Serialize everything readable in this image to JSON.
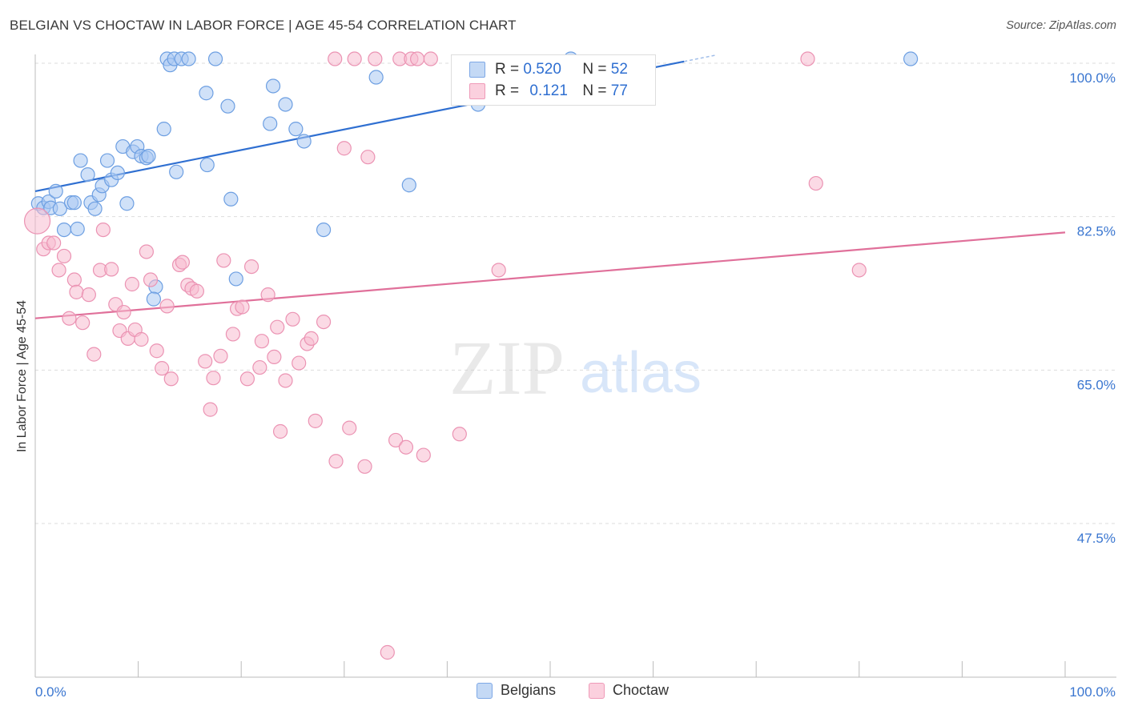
{
  "title": "BELGIAN VS CHOCTAW IN LABOR FORCE | AGE 45-54 CORRELATION CHART",
  "source": "Source: ZipAtlas.com",
  "watermark": {
    "zip": "ZIP",
    "atlas": "atlas"
  },
  "colors": {
    "blue": "#2f6fd1",
    "blue_fill": "#a9c8f2",
    "pink": "#e0709a",
    "pink_fill": "#f7bcd0",
    "grid": "#dddddd",
    "axis_text": "#3a76d0"
  },
  "legend_stats": [
    {
      "r_label": "R =",
      "r_value": "0.520",
      "n_label": "N =",
      "n_value": "52"
    },
    {
      "r_label": "R =",
      "r_value": "0.121",
      "n_label": "N =",
      "n_value": "77"
    }
  ],
  "bottom_legend": [
    "Belgians",
    "Choctaw"
  ],
  "chart_data": {
    "type": "scatter",
    "title": "BELGIAN VS CHOCTAW IN LABOR FORCE | AGE 45-54 CORRELATION CHART",
    "xlabel": "",
    "ylabel": "In Labor Force | Age 45-54",
    "xlim": [
      0,
      100
    ],
    "ylim": [
      30,
      102
    ],
    "x_tick_labels": [
      "0.0%",
      "100.0%"
    ],
    "y_tick_labels": [
      "100.0%",
      "82.5%",
      "65.0%",
      "47.5%"
    ],
    "y_ticks": [
      100,
      82.5,
      65,
      47.5
    ],
    "series": [
      {
        "name": "Belgians",
        "color": "#2f6fd1",
        "trend": {
          "x": [
            0,
            63
          ],
          "y": [
            85.4,
            100.2
          ]
        },
        "points": [
          [
            0.3,
            84.0
          ],
          [
            0.8,
            83.5
          ],
          [
            1.3,
            84.2
          ],
          [
            1.5,
            83.5
          ],
          [
            2.0,
            85.4
          ],
          [
            2.4,
            83.4
          ],
          [
            2.8,
            81.0
          ],
          [
            3.5,
            84.1
          ],
          [
            3.8,
            84.1
          ],
          [
            4.1,
            81.1
          ],
          [
            4.4,
            88.9
          ],
          [
            5.1,
            87.3
          ],
          [
            5.4,
            84.1
          ],
          [
            5.8,
            83.4
          ],
          [
            6.2,
            85.0
          ],
          [
            6.5,
            86.0
          ],
          [
            7.0,
            88.9
          ],
          [
            7.4,
            86.7
          ],
          [
            8.0,
            87.5
          ],
          [
            8.5,
            90.5
          ],
          [
            8.9,
            84.0
          ],
          [
            9.5,
            89.9
          ],
          [
            9.9,
            90.5
          ],
          [
            10.3,
            89.4
          ],
          [
            10.8,
            89.2
          ],
          [
            11.0,
            89.4
          ],
          [
            11.7,
            74.5
          ],
          [
            11.5,
            73.1
          ],
          [
            12.5,
            92.5
          ],
          [
            12.8,
            100.5
          ],
          [
            13.1,
            99.8
          ],
          [
            13.5,
            100.5
          ],
          [
            13.7,
            87.6
          ],
          [
            14.2,
            100.5
          ],
          [
            14.9,
            100.5
          ],
          [
            16.6,
            96.6
          ],
          [
            16.7,
            88.4
          ],
          [
            17.5,
            100.5
          ],
          [
            18.7,
            95.1
          ],
          [
            19.0,
            84.5
          ],
          [
            19.5,
            75.4
          ],
          [
            22.8,
            93.1
          ],
          [
            23.1,
            97.4
          ],
          [
            24.3,
            95.3
          ],
          [
            25.3,
            92.5
          ],
          [
            26.1,
            91.1
          ],
          [
            28.0,
            81.0
          ],
          [
            33.1,
            98.4
          ],
          [
            36.3,
            86.1
          ],
          [
            43.0,
            95.3
          ],
          [
            52.0,
            100.5
          ],
          [
            85.0,
            100.5
          ]
        ]
      },
      {
        "name": "Choctaw",
        "color": "#e0709a",
        "trend": {
          "x": [
            0,
            100
          ],
          "y": [
            70.9,
            80.7
          ]
        },
        "points": [
          [
            0.2,
            82.0
          ],
          [
            0.8,
            78.8
          ],
          [
            1.3,
            79.5
          ],
          [
            1.8,
            79.5
          ],
          [
            2.3,
            76.4
          ],
          [
            2.8,
            78.0
          ],
          [
            3.3,
            70.9
          ],
          [
            3.8,
            75.3
          ],
          [
            4.0,
            73.9
          ],
          [
            4.6,
            70.4
          ],
          [
            5.2,
            73.6
          ],
          [
            5.7,
            66.8
          ],
          [
            6.3,
            76.4
          ],
          [
            6.6,
            81.0
          ],
          [
            7.4,
            76.5
          ],
          [
            7.8,
            72.5
          ],
          [
            8.2,
            69.5
          ],
          [
            8.6,
            71.6
          ],
          [
            9.0,
            68.6
          ],
          [
            9.4,
            74.8
          ],
          [
            9.7,
            69.6
          ],
          [
            10.3,
            68.5
          ],
          [
            10.8,
            78.5
          ],
          [
            11.2,
            75.3
          ],
          [
            11.8,
            67.2
          ],
          [
            12.3,
            65.2
          ],
          [
            12.8,
            72.3
          ],
          [
            13.2,
            64.0
          ],
          [
            14.0,
            77.0
          ],
          [
            14.3,
            77.3
          ],
          [
            14.8,
            74.7
          ],
          [
            15.2,
            74.3
          ],
          [
            15.7,
            74.0
          ],
          [
            16.5,
            66.0
          ],
          [
            17.0,
            60.5
          ],
          [
            17.3,
            64.1
          ],
          [
            18.0,
            66.6
          ],
          [
            18.3,
            77.5
          ],
          [
            19.2,
            69.1
          ],
          [
            19.6,
            72.0
          ],
          [
            20.1,
            72.2
          ],
          [
            20.6,
            64.0
          ],
          [
            21.0,
            76.8
          ],
          [
            21.8,
            65.3
          ],
          [
            22.0,
            68.3
          ],
          [
            22.6,
            73.6
          ],
          [
            23.2,
            66.5
          ],
          [
            23.5,
            69.9
          ],
          [
            23.8,
            58.0
          ],
          [
            24.3,
            63.8
          ],
          [
            25.0,
            70.8
          ],
          [
            25.6,
            65.8
          ],
          [
            26.4,
            68.0
          ],
          [
            26.8,
            68.6
          ],
          [
            27.2,
            59.2
          ],
          [
            28.0,
            70.5
          ],
          [
            29.1,
            100.5
          ],
          [
            29.2,
            54.6
          ],
          [
            30.0,
            90.3
          ],
          [
            30.5,
            58.4
          ],
          [
            31.0,
            100.5
          ],
          [
            32.0,
            54.0
          ],
          [
            32.3,
            89.3
          ],
          [
            33.0,
            100.5
          ],
          [
            34.2,
            32.8
          ],
          [
            35.0,
            57.0
          ],
          [
            35.4,
            100.5
          ],
          [
            36.0,
            56.2
          ],
          [
            36.5,
            100.5
          ],
          [
            37.1,
            100.5
          ],
          [
            37.7,
            55.3
          ],
          [
            38.4,
            100.5
          ],
          [
            41.2,
            57.7
          ],
          [
            45.0,
            76.4
          ],
          [
            75.0,
            100.5
          ],
          [
            75.8,
            86.3
          ],
          [
            80.0,
            76.4
          ]
        ]
      }
    ],
    "legend_position": "top-center"
  }
}
